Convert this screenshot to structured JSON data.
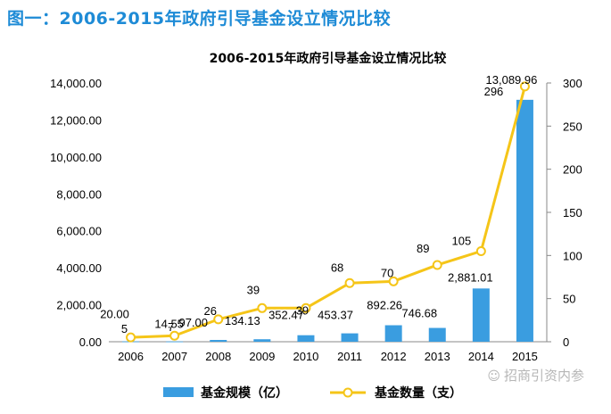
{
  "header": "图一：2006-2015年政府引导基金设立情况比较",
  "watermark": "招商引资内参",
  "colors": {
    "bar": "#3a9de0",
    "line": "#f5c518",
    "header": "#1e8bd6"
  },
  "chart_data": {
    "type": "bar+line",
    "title": "2006-2015年政府引导基金设立情况比较",
    "categories": [
      "2006",
      "2007",
      "2008",
      "2009",
      "2010",
      "2011",
      "2012",
      "2013",
      "2014",
      "2015"
    ],
    "series": [
      {
        "name": "基金规模（亿）",
        "type": "bar",
        "axis": "left",
        "values": [
          20.0,
          14.55,
          97.0,
          134.13,
          352.47,
          453.37,
          892.26,
          746.68,
          2881.01,
          13089.96
        ],
        "labels": [
          "20.00",
          "14.55",
          "97.00",
          "134.13",
          "352.47",
          "453.37",
          "892.26",
          "746.68",
          "2,881.01",
          "13,089.96"
        ]
      },
      {
        "name": "基金数量（支）",
        "type": "line",
        "axis": "right",
        "values": [
          5,
          7,
          26,
          39,
          39,
          68,
          70,
          89,
          105,
          296
        ],
        "labels": [
          "5",
          "7",
          "26",
          "39",
          "39",
          "68",
          "70",
          "89",
          "105",
          "296"
        ]
      }
    ],
    "y_left": {
      "min": 0,
      "max": 14000,
      "ticks": [
        "0.00",
        "2,000.00",
        "4,000.00",
        "6,000.00",
        "8,000.00",
        "10,000.00",
        "12,000.00",
        "14,000.00"
      ]
    },
    "y_right": {
      "min": 0,
      "max": 300,
      "ticks": [
        "0",
        "50",
        "100",
        "150",
        "200",
        "250",
        "300"
      ]
    },
    "legend": {
      "position": "bottom",
      "entries": [
        "基金规模（亿）",
        "基金数量（支）"
      ]
    }
  }
}
